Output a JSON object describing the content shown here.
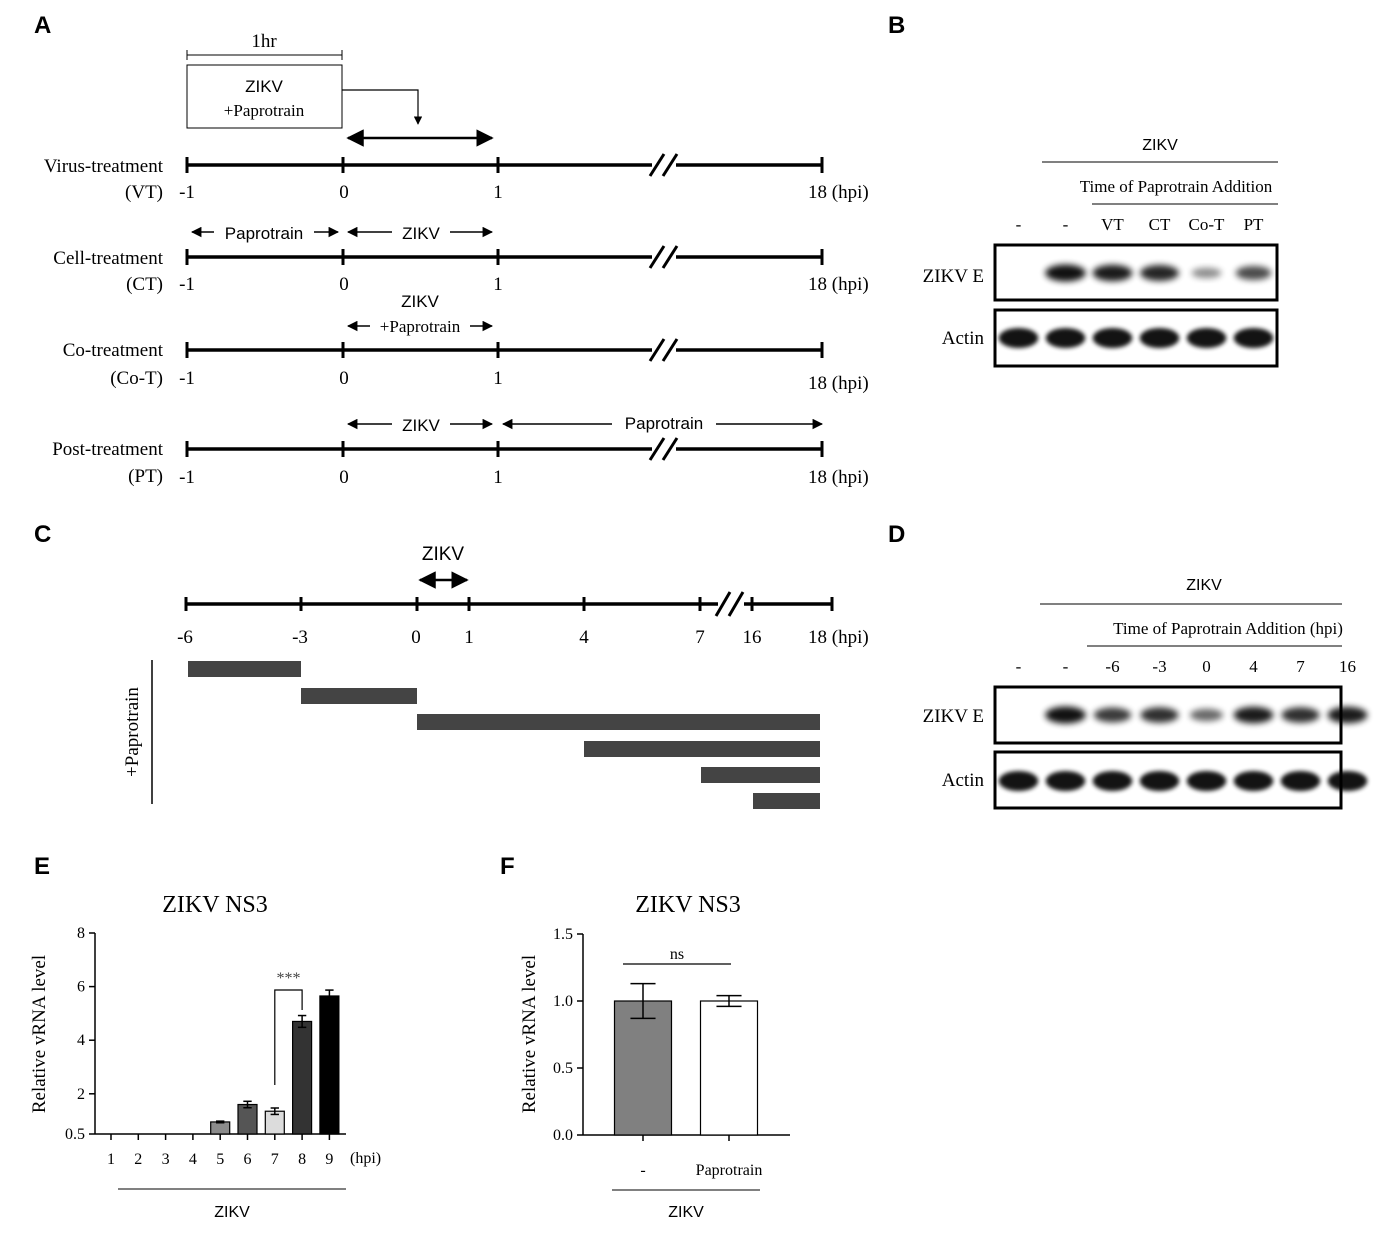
{
  "panels": {
    "A": "A",
    "B": "B",
    "C": "C",
    "D": "D",
    "E": "E",
    "F": "F"
  },
  "panel_a": {
    "scale_label": "1hr",
    "box_line1": "ZIKV",
    "box_line2": "+Paprotrain",
    "rows": [
      {
        "name": "Virus-treatment",
        "abbr": "(VT)"
      },
      {
        "name": "Cell-treatment",
        "abbr": "(CT)"
      },
      {
        "name": "Co-treatment",
        "abbr": "(Co-T)"
      },
      {
        "name": "Post-treatment",
        "abbr": "(PT)"
      }
    ],
    "ticks": [
      "-1",
      "0",
      "1",
      "18 (hpi)"
    ],
    "ct_paprotrain": "Paprotrain",
    "ct_zikv": "ZIKV",
    "cot_line1": "ZIKV",
    "cot_line2": "+Paprotrain",
    "pt_zikv": "ZIKV",
    "pt_paprotrain": "Paprotrain"
  },
  "panel_b": {
    "header": "ZIKV",
    "subheader": "Time of Paprotrain Addition",
    "lanes": [
      "-",
      "-",
      "VT",
      "CT",
      "Co-T",
      "PT"
    ],
    "blot1": "ZIKV E",
    "blot2": "Actin",
    "zikv_e_intensity": [
      0,
      0.9,
      0.85,
      0.8,
      0.25,
      0.6
    ]
  },
  "panel_c": {
    "zikv": "ZIKV",
    "ticks": [
      "-6",
      "-3",
      "0",
      "1",
      "4",
      "7",
      "16",
      "18 (hpi)"
    ],
    "side_label": "+Paprotrain"
  },
  "panel_d": {
    "header": "ZIKV",
    "subheader": "Time of Paprotrain Addition (hpi)",
    "lanes": [
      "-",
      "-",
      "-6",
      "-3",
      "0",
      "4",
      "7",
      "16"
    ],
    "blot1": "ZIKV E",
    "blot2": "Actin",
    "zikv_e_intensity": [
      0,
      0.9,
      0.7,
      0.75,
      0.45,
      0.85,
      0.75,
      0.85
    ]
  },
  "chart_data": [
    {
      "type": "bar",
      "title": "ZIKV NS3",
      "ylabel": "Relative vRNA level",
      "xlabel": "ZIKV",
      "x_unit": "(hpi)",
      "categories": [
        "1",
        "2",
        "3",
        "4",
        "5",
        "6",
        "7",
        "8",
        "9"
      ],
      "values": [
        0.5,
        0.5,
        0.5,
        0.5,
        0.95,
        1.6,
        1.35,
        4.7,
        5.65
      ],
      "errors": [
        0,
        0,
        0,
        0,
        0.03,
        0.12,
        0.12,
        0.22,
        0.22
      ],
      "colors": [
        "#ffffff",
        "#ffffff",
        "#ffffff",
        "#ffffff",
        "#8c8c8c",
        "#555555",
        "#dcdcdc",
        "#333333",
        "#000000"
      ],
      "yticks": [
        "0.5",
        "2",
        "4",
        "6",
        "8"
      ],
      "ylim": [
        0.5,
        8
      ],
      "annotation": "***",
      "annotation_between": [
        "7",
        "8"
      ]
    },
    {
      "type": "bar",
      "title": "ZIKV NS3",
      "ylabel": "Relative vRNA level",
      "xlabel": "ZIKV",
      "categories": [
        "-",
        "Paprotrain"
      ],
      "values": [
        1.0,
        1.0
      ],
      "errors": [
        0.13,
        0.04
      ],
      "colors": [
        "#808080",
        "#ffffff"
      ],
      "yticks": [
        "0.0",
        "0.5",
        "1.0",
        "1.5"
      ],
      "ylim": [
        0,
        1.5
      ],
      "annotation": "ns"
    }
  ]
}
